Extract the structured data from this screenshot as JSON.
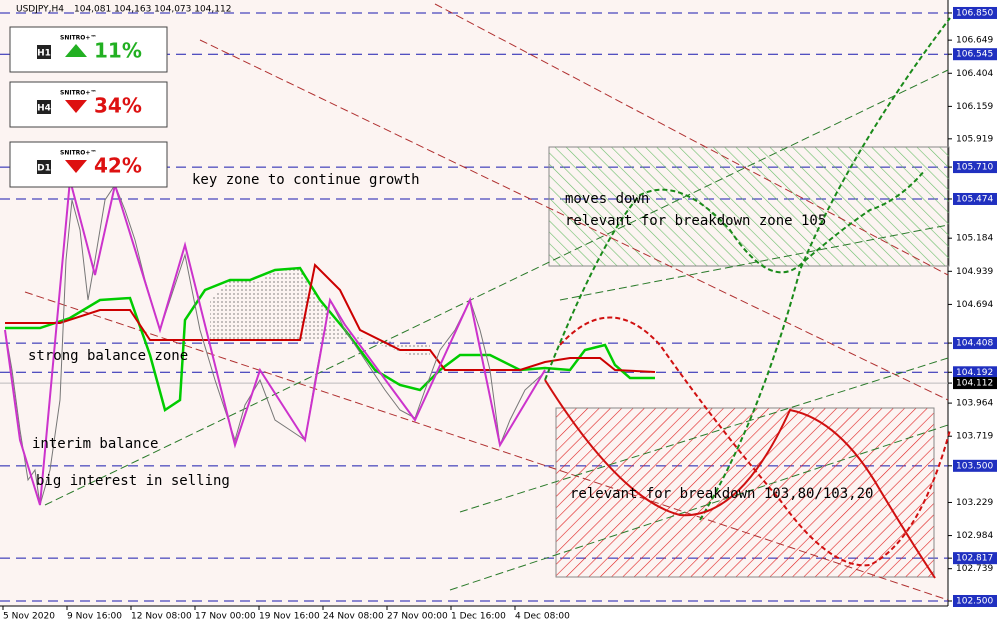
{
  "header": {
    "symbol": "USDJPY,H4",
    "ohlc": "104,081 104,163 104,073 104,112"
  },
  "indicators": [
    {
      "timeframe": "H1",
      "brand": "SNITRO+™",
      "direction": "up",
      "percent": "11%"
    },
    {
      "timeframe": "H4",
      "brand": "SNITRO+™",
      "direction": "down",
      "percent": "34%"
    },
    {
      "timeframe": "D1",
      "brand": "SNITRO+™",
      "direction": "down",
      "percent": "42%"
    }
  ],
  "price_axis": {
    "ylim": [
      102.463,
      106.909
    ],
    "ticks": [
      {
        "value": 106.85,
        "label": "106.850",
        "line": true
      },
      {
        "value": 106.649,
        "label": "106.649"
      },
      {
        "value": 106.545,
        "label": "106.545",
        "line": true
      },
      {
        "value": 106.404,
        "label": "106.404"
      },
      {
        "value": 106.159,
        "label": "106.159"
      },
      {
        "value": 105.919,
        "label": "105.919"
      },
      {
        "value": 105.71,
        "label": "105.710",
        "line": true
      },
      {
        "value": 105.474,
        "label": "105.474",
        "line": true
      },
      {
        "value": 105.184,
        "label": "105.184"
      },
      {
        "value": 104.939,
        "label": "104.939"
      },
      {
        "value": 104.694,
        "label": "104.694"
      },
      {
        "value": 104.408,
        "label": "104.408",
        "line": true
      },
      {
        "value": 104.192,
        "label": "104.192",
        "line": true
      },
      {
        "value": 104.112,
        "label": "104.112",
        "current": true
      },
      {
        "value": 103.964,
        "label": "103.964"
      },
      {
        "value": 103.719,
        "label": "103.719"
      },
      {
        "value": 103.5,
        "label": "103.500",
        "line": true
      },
      {
        "value": 103.229,
        "label": "103.229"
      },
      {
        "value": 102.984,
        "label": "102.984"
      },
      {
        "value": 102.817,
        "label": "102.817",
        "line": true
      },
      {
        "value": 102.739,
        "label": "102.739"
      },
      {
        "value": 102.5,
        "label": "102.500",
        "line": true
      }
    ]
  },
  "time_axis": [
    "5 Nov 2020",
    "9 Nov 16:00",
    "12 Nov 08:00",
    "17 Nov 00:00",
    "19 Nov 16:00",
    "24 Nov 08:00",
    "27 Nov 00:00",
    "1 Dec 16:00",
    "4 Dec 08:00"
  ],
  "annotations": [
    "key zone to continue growth",
    "moves down",
    "relevant for breakdown zone 105",
    "strong balance zone",
    "interim balance",
    "big interest in selling",
    "relevant for breakdown 103,80/103,20"
  ]
}
